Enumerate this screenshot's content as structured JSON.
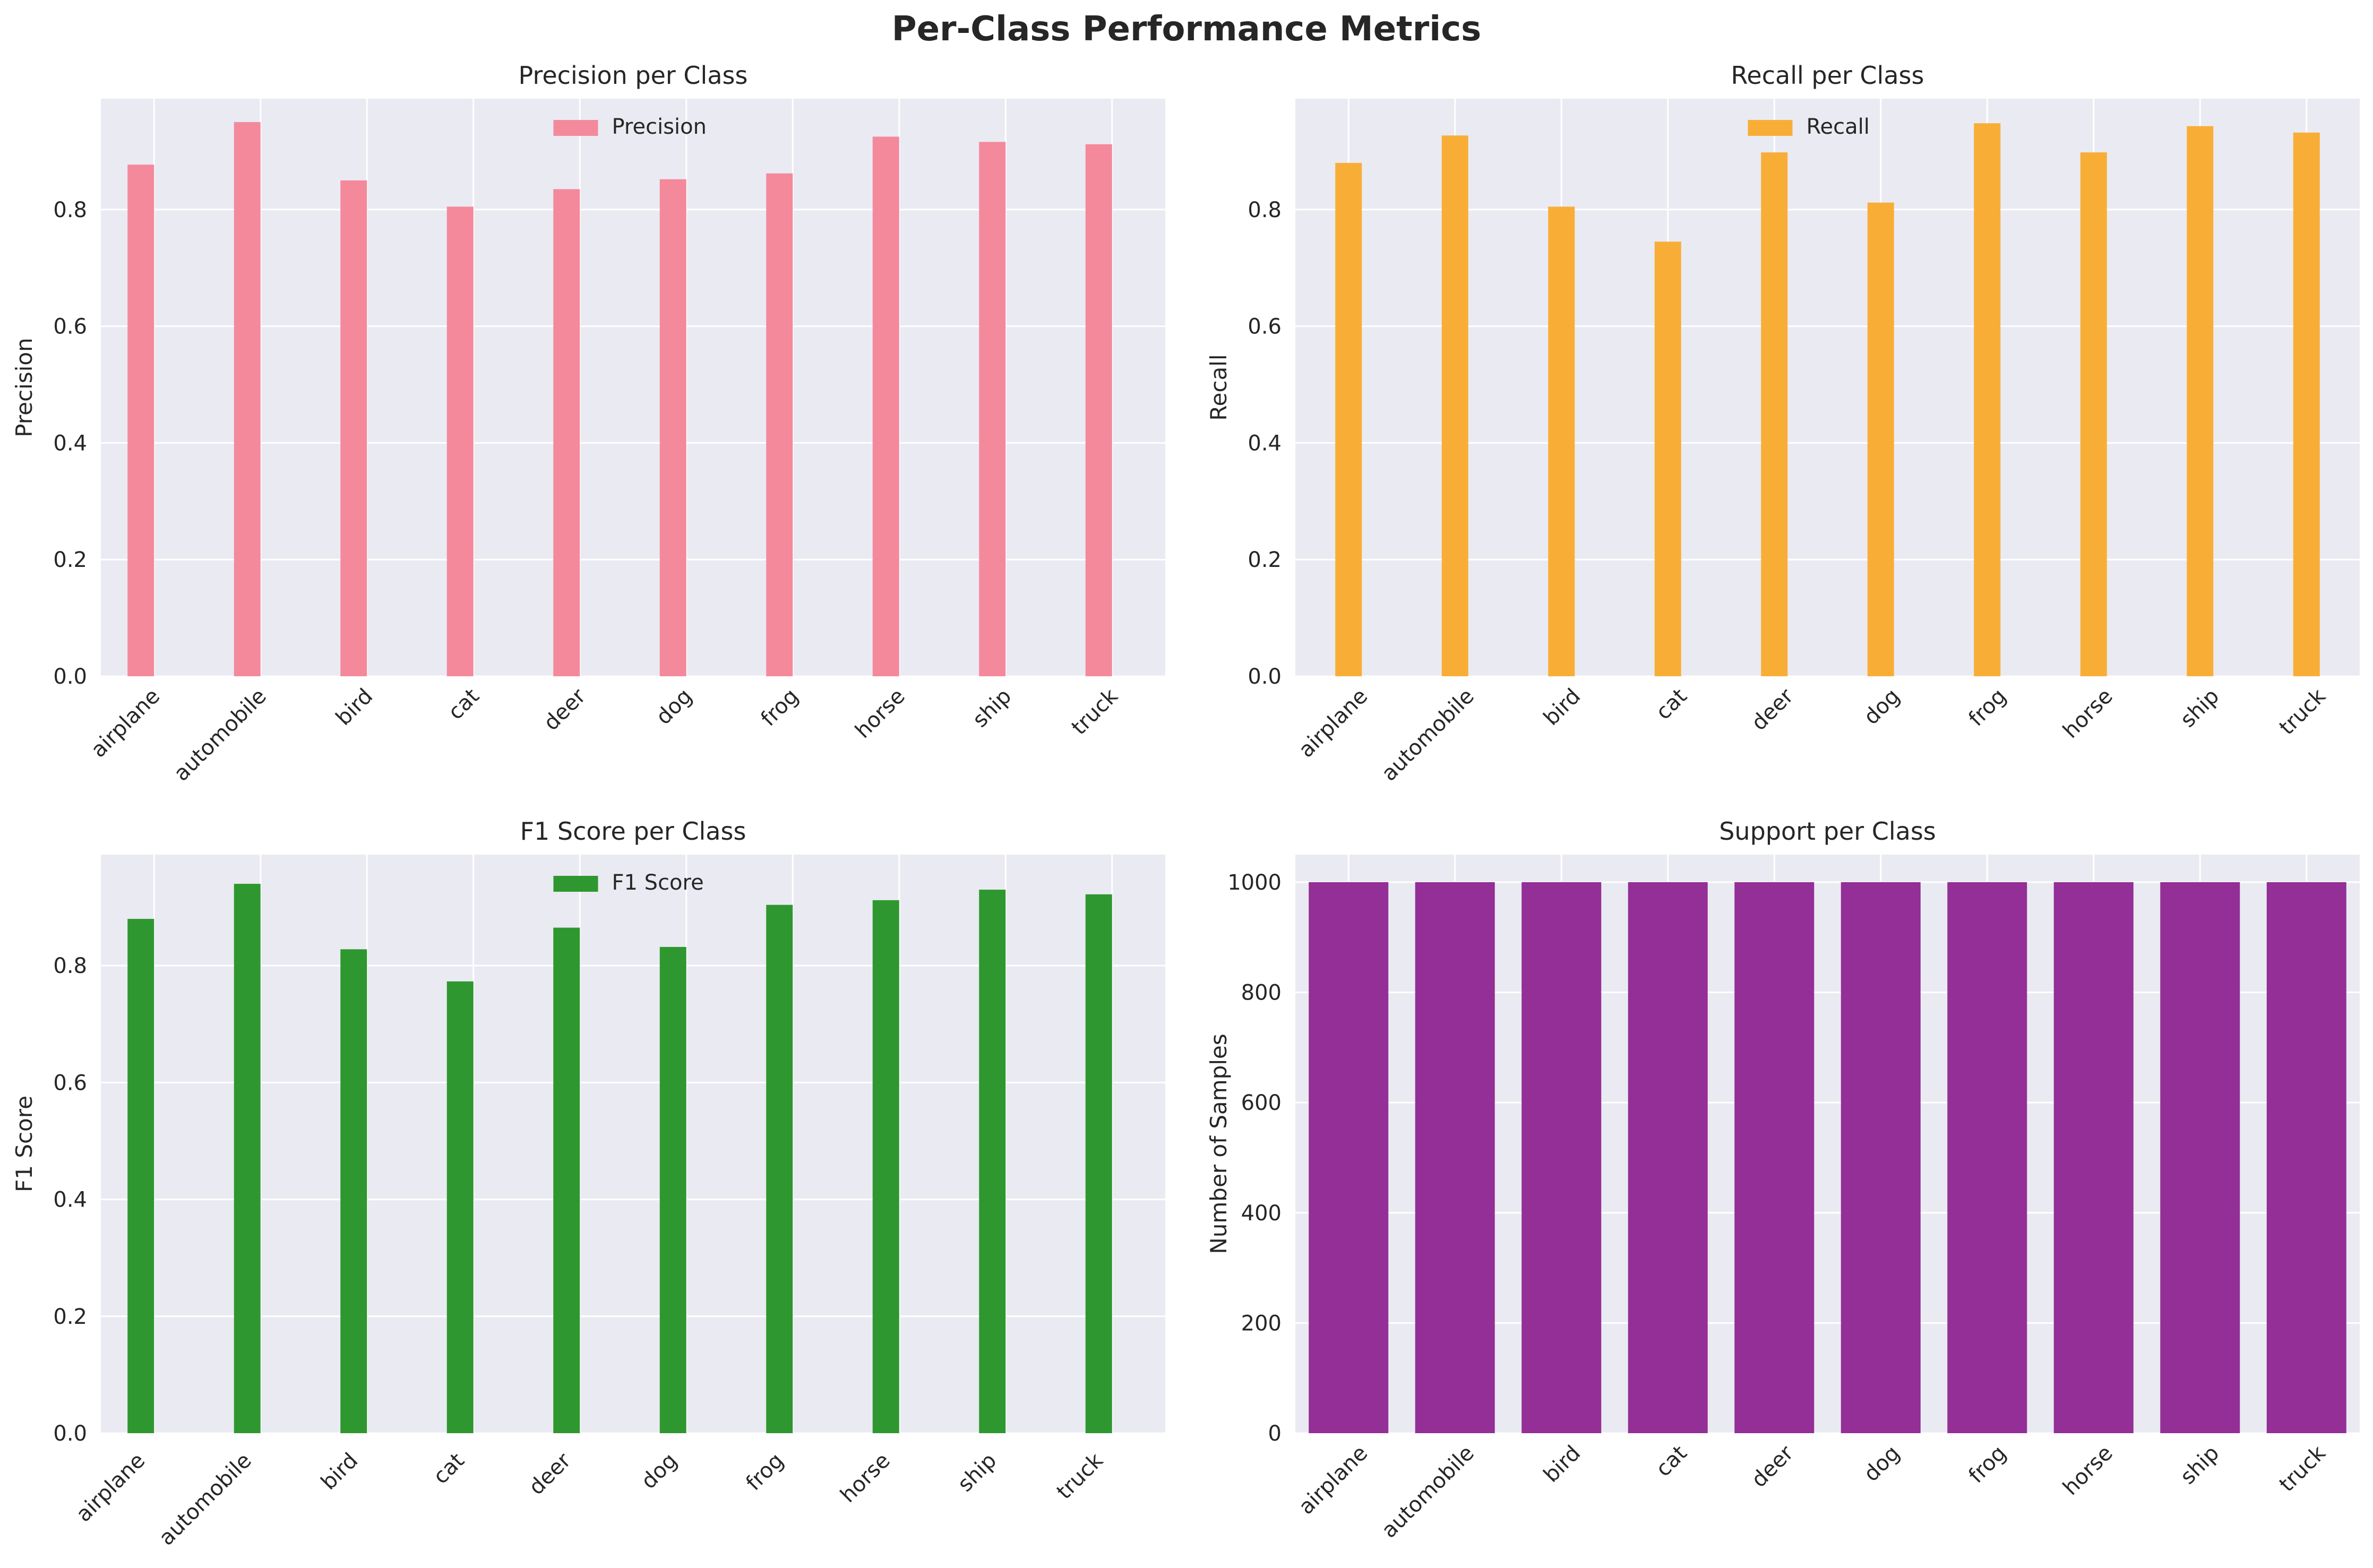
{
  "figure_title": "Per-Class Performance Metrics",
  "colors": {
    "panel_bg": "#eaeaf2",
    "grid": "#ffffff",
    "precision": "#f4899c",
    "recall": "#f8ae36",
    "f1": "#2f972f",
    "support": "#932f96",
    "text": "#262626"
  },
  "chart_data": [
    {
      "type": "bar",
      "title": "Precision per Class",
      "ylabel": "Precision",
      "xlabel": "",
      "categories": [
        "airplane",
        "automobile",
        "bird",
        "cat",
        "deer",
        "dog",
        "frog",
        "horse",
        "ship",
        "truck"
      ],
      "series": [
        {
          "name": "Precision",
          "values": [
            0.877,
            0.95,
            0.85,
            0.805,
            0.835,
            0.852,
            0.862,
            0.925,
            0.916,
            0.912
          ]
        }
      ],
      "ylim": [
        0,
        0.99
      ],
      "yticks": [
        0.0,
        0.2,
        0.4,
        0.6,
        0.8
      ],
      "ytick_labels": [
        "0.0",
        "0.2",
        "0.4",
        "0.6",
        "0.8"
      ],
      "legend": "top-center",
      "grid": true
    },
    {
      "type": "bar",
      "title": "Recall per Class",
      "ylabel": "Recall",
      "xlabel": "",
      "categories": [
        "airplane",
        "automobile",
        "bird",
        "cat",
        "deer",
        "dog",
        "frog",
        "horse",
        "ship",
        "truck"
      ],
      "series": [
        {
          "name": "Recall",
          "values": [
            0.88,
            0.927,
            0.805,
            0.745,
            0.898,
            0.812,
            0.948,
            0.898,
            0.943,
            0.932
          ]
        }
      ],
      "ylim": [
        0,
        0.99
      ],
      "yticks": [
        0.0,
        0.2,
        0.4,
        0.6,
        0.8
      ],
      "ytick_labels": [
        "0.0",
        "0.2",
        "0.4",
        "0.6",
        "0.8"
      ],
      "legend": "top-center",
      "grid": true
    },
    {
      "type": "bar",
      "title": "F1 Score per Class",
      "ylabel": "F1 Score",
      "xlabel": "",
      "categories": [
        "airplane",
        "automobile",
        "bird",
        "cat",
        "deer",
        "dog",
        "frog",
        "horse",
        "ship",
        "truck"
      ],
      "series": [
        {
          "name": "F1 Score",
          "values": [
            0.88,
            0.94,
            0.828,
            0.773,
            0.865,
            0.832,
            0.904,
            0.912,
            0.93,
            0.922
          ]
        }
      ],
      "ylim": [
        0,
        0.99
      ],
      "yticks": [
        0.0,
        0.2,
        0.4,
        0.6,
        0.8
      ],
      "ytick_labels": [
        "0.0",
        "0.2",
        "0.4",
        "0.6",
        "0.8"
      ],
      "legend": "top-center",
      "grid": true
    },
    {
      "type": "bar",
      "title": "Support per Class",
      "ylabel": "Number of Samples",
      "xlabel": "",
      "categories": [
        "airplane",
        "automobile",
        "bird",
        "cat",
        "deer",
        "dog",
        "frog",
        "horse",
        "ship",
        "truck"
      ],
      "series": [
        {
          "values": [
            1000,
            1000,
            1000,
            1000,
            1000,
            1000,
            1000,
            1000,
            1000,
            1000
          ]
        }
      ],
      "ylim": [
        0,
        1050
      ],
      "yticks": [
        0,
        200,
        400,
        600,
        800,
        1000
      ],
      "ytick_labels": [
        "0",
        "200",
        "400",
        "600",
        "800",
        "1000"
      ],
      "legend": "none",
      "grid": true
    }
  ]
}
